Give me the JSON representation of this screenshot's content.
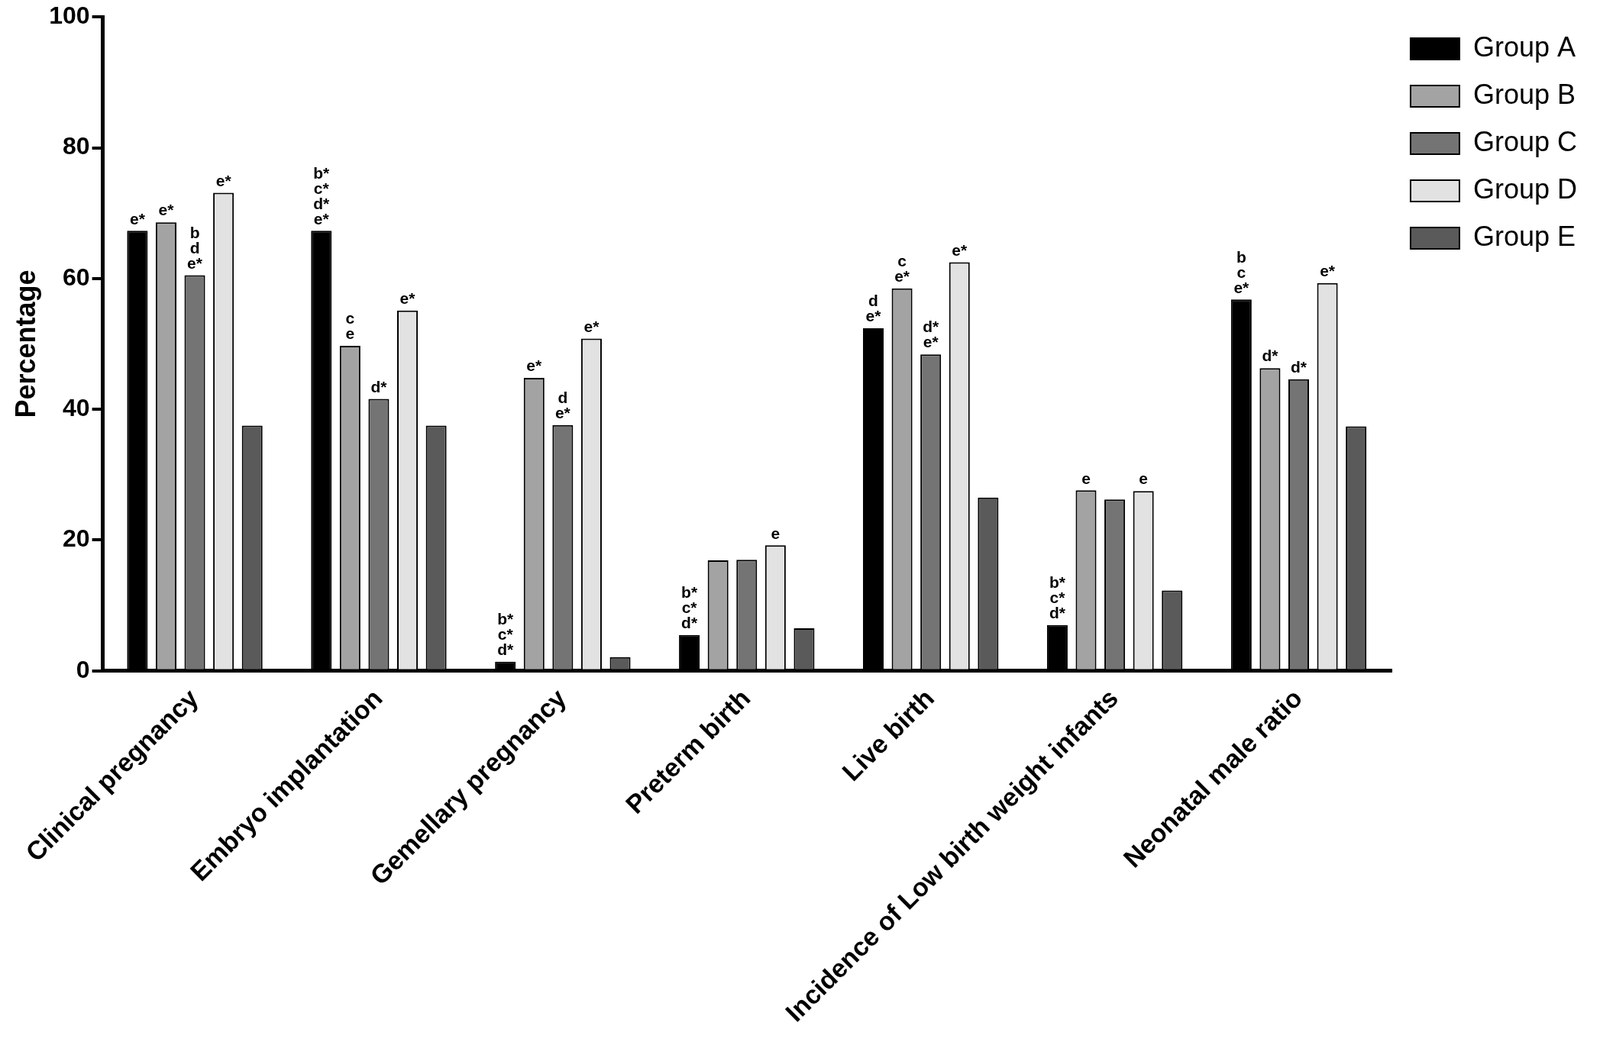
{
  "chart_data": {
    "type": "bar",
    "y_label": "Percentage",
    "categories": [
      "Clinical pregnancy",
      "Embryo implantation",
      "Gemellary pregnancy",
      "Preterm birth",
      "Live birth",
      "Incidence of Low birth weight infants",
      "Neonatal male ratio"
    ],
    "series": [
      {
        "name": "Group A",
        "color": "#000000",
        "values": [
          67.3,
          67.3,
          1.4,
          5.5,
          52.4,
          7.0,
          56.8
        ],
        "annotations": [
          [
            "e*"
          ],
          [
            "b*",
            "c*",
            "d*",
            "e*"
          ],
          [
            "b*",
            "c*",
            "d*"
          ],
          [
            "b*",
            "c*",
            "d*"
          ],
          [
            "d",
            "e*"
          ],
          [
            "b*",
            "c*",
            "d*"
          ],
          [
            "b",
            "c",
            "e*"
          ]
        ]
      },
      {
        "name": "Group B",
        "color": "#a3a3a3",
        "values": [
          68.6,
          49.7,
          44.8,
          16.9,
          58.5,
          27.6,
          46.3
        ],
        "annotations": [
          [
            "e*"
          ],
          [
            "c",
            "e"
          ],
          [
            "e*"
          ],
          [],
          [
            "c",
            "e*"
          ],
          [
            "e"
          ],
          [
            "d*"
          ]
        ]
      },
      {
        "name": "Group C",
        "color": "#747474",
        "values": [
          60.5,
          41.6,
          37.6,
          17.0,
          48.4,
          26.2,
          44.6
        ],
        "annotations": [
          [
            "b",
            "d",
            "e*"
          ],
          [
            "d*"
          ],
          [
            "d",
            "e*"
          ],
          [],
          [
            "d*",
            "e*"
          ],
          [],
          [
            "d*"
          ]
        ]
      },
      {
        "name": "Group D",
        "color": "#e2e2e2",
        "values": [
          73.1,
          55.1,
          50.8,
          19.2,
          62.5,
          27.5,
          59.3
        ],
        "annotations": [
          [
            "e*"
          ],
          [
            "e*"
          ],
          [
            "e*"
          ],
          [
            "e"
          ],
          [
            "e*"
          ],
          [
            "e"
          ],
          [
            "e*"
          ]
        ]
      },
      {
        "name": "Group E",
        "color": "#5a5a5a",
        "values": [
          37.5,
          37.5,
          2.1,
          6.5,
          26.5,
          12.3,
          37.4
        ],
        "annotations": [
          [],
          [],
          [],
          [],
          [],
          [],
          []
        ]
      }
    ],
    "ylim": [
      0,
      100
    ],
    "yticks": [
      0,
      20,
      40,
      60,
      80,
      100
    ],
    "grid": false,
    "legend": "right"
  }
}
